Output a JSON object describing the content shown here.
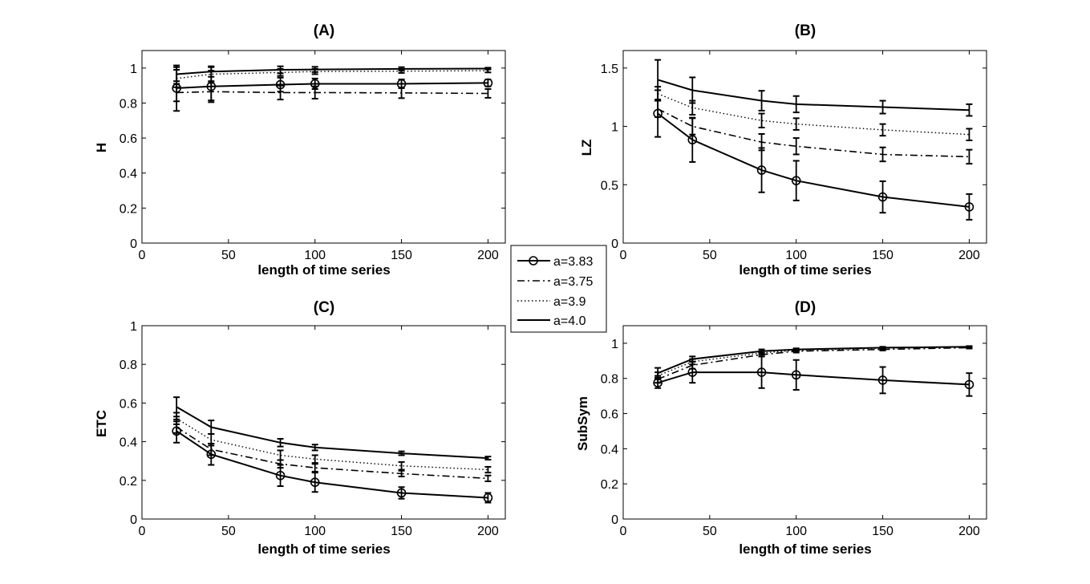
{
  "legend": {
    "entries": [
      {
        "label": "a=3.83",
        "style": "solid-circle"
      },
      {
        "label": "a=3.75",
        "style": "dashdot"
      },
      {
        "label": "a=3.9",
        "style": "dotted"
      },
      {
        "label": "a=4.0",
        "style": "solid"
      }
    ]
  },
  "chart_data": [
    {
      "type": "line",
      "title": "(A)",
      "xlabel": "length of time series",
      "ylabel": "H",
      "xlim": [
        0,
        210
      ],
      "ylim": [
        0,
        1.1
      ],
      "xticks": [
        "0",
        "50",
        "100",
        "150",
        "200"
      ],
      "yticks": [
        "0",
        "0.2",
        "0.4",
        "0.6",
        "0.8",
        "1"
      ],
      "x": [
        20,
        40,
        80,
        100,
        150,
        200
      ],
      "series": [
        {
          "name": "a=3.83",
          "values": [
            0.885,
            0.895,
            0.905,
            0.91,
            0.91,
            0.915
          ],
          "errors": [
            0.13,
            0.09,
            0.04,
            0.03,
            0.025,
            0.02
          ]
        },
        {
          "name": "a=3.75",
          "values": [
            0.86,
            0.865,
            0.86,
            0.86,
            0.858,
            0.855
          ],
          "errors": [
            0.05,
            0.05,
            0.04,
            0.035,
            0.03,
            0.025
          ]
        },
        {
          "name": "a=3.9",
          "values": [
            0.94,
            0.965,
            0.975,
            0.98,
            0.982,
            0.985
          ],
          "errors": [
            0.05,
            0.04,
            0.02,
            0.015,
            0.01,
            0.01
          ]
        },
        {
          "name": "a=4.0",
          "values": [
            0.965,
            0.98,
            0.99,
            0.992,
            0.995,
            0.997
          ],
          "errors": [
            0.04,
            0.03,
            0.02,
            0.015,
            0.01,
            0.005
          ]
        }
      ]
    },
    {
      "type": "line",
      "title": "(B)",
      "xlabel": "length of time series",
      "ylabel": "LZ",
      "xlim": [
        0,
        210
      ],
      "ylim": [
        0,
        1.65
      ],
      "xticks": [
        "0",
        "50",
        "100",
        "150",
        "200"
      ],
      "yticks": [
        "0",
        "0.5",
        "1",
        "1.5"
      ],
      "x": [
        20,
        40,
        80,
        100,
        150,
        200
      ],
      "series": [
        {
          "name": "a=3.83",
          "values": [
            1.11,
            0.885,
            0.625,
            0.535,
            0.395,
            0.31
          ],
          "errors": [
            0.2,
            0.19,
            0.19,
            0.17,
            0.135,
            0.11
          ]
        },
        {
          "name": "a=3.75",
          "values": [
            1.15,
            1.0,
            0.865,
            0.83,
            0.76,
            0.74
          ],
          "errors": [
            0.07,
            0.07,
            0.07,
            0.07,
            0.06,
            0.06
          ]
        },
        {
          "name": "a=3.9",
          "values": [
            1.28,
            1.16,
            1.05,
            1.02,
            0.97,
            0.93
          ],
          "errors": [
            0.06,
            0.06,
            0.06,
            0.05,
            0.05,
            0.05
          ]
        },
        {
          "name": "a=4.0",
          "values": [
            1.4,
            1.31,
            1.22,
            1.19,
            1.165,
            1.14
          ],
          "errors": [
            0.17,
            0.11,
            0.085,
            0.07,
            0.055,
            0.05
          ]
        }
      ]
    },
    {
      "type": "line",
      "title": "(C)",
      "xlabel": "length of time series",
      "ylabel": "ETC",
      "xlim": [
        0,
        210
      ],
      "ylim": [
        0,
        1
      ],
      "xticks": [
        "0",
        "50",
        "100",
        "150",
        "200"
      ],
      "yticks": [
        "0",
        "0.2",
        "0.4",
        "0.6",
        "0.8",
        "1"
      ],
      "x": [
        20,
        40,
        80,
        100,
        150,
        200
      ],
      "series": [
        {
          "name": "a=3.83",
          "values": [
            0.455,
            0.335,
            0.225,
            0.19,
            0.135,
            0.11
          ],
          "errors": [
            0.06,
            0.055,
            0.055,
            0.05,
            0.03,
            0.025
          ]
        },
        {
          "name": "a=3.75",
          "values": [
            0.475,
            0.36,
            0.285,
            0.265,
            0.235,
            0.21
          ],
          "errors": [
            0.03,
            0.03,
            0.02,
            0.02,
            0.015,
            0.015
          ]
        },
        {
          "name": "a=3.9",
          "values": [
            0.52,
            0.41,
            0.33,
            0.31,
            0.275,
            0.255
          ],
          "errors": [
            0.03,
            0.03,
            0.025,
            0.02,
            0.02,
            0.015
          ]
        },
        {
          "name": "a=4.0",
          "values": [
            0.58,
            0.475,
            0.395,
            0.37,
            0.34,
            0.315
          ],
          "errors": [
            0.05,
            0.035,
            0.02,
            0.015,
            0.01,
            0.008
          ]
        }
      ]
    },
    {
      "type": "line",
      "title": "(D)",
      "xlabel": "length of time series",
      "ylabel": "SubSym",
      "xlim": [
        0,
        210
      ],
      "ylim": [
        0,
        1.1
      ],
      "xticks": [
        "0",
        "50",
        "100",
        "150",
        "200"
      ],
      "yticks": [
        "0",
        "0.2",
        "0.4",
        "0.6",
        "0.8",
        "1"
      ],
      "x": [
        20,
        40,
        80,
        100,
        150,
        200
      ],
      "series": [
        {
          "name": "a=3.83",
          "values": [
            0.775,
            0.835,
            0.835,
            0.82,
            0.79,
            0.765
          ],
          "errors": [
            0.03,
            0.06,
            0.09,
            0.085,
            0.075,
            0.065
          ]
        },
        {
          "name": "a=3.75",
          "values": [
            0.795,
            0.875,
            0.935,
            0.955,
            0.965,
            0.975
          ],
          "errors": [
            0.02,
            0.02,
            0.01,
            0.008,
            0.006,
            0.005
          ]
        },
        {
          "name": "a=3.9",
          "values": [
            0.815,
            0.895,
            0.945,
            0.96,
            0.972,
            0.978
          ],
          "errors": [
            0.02,
            0.015,
            0.01,
            0.006,
            0.005,
            0.004
          ]
        },
        {
          "name": "a=4.0",
          "values": [
            0.83,
            0.91,
            0.955,
            0.965,
            0.975,
            0.98
          ],
          "errors": [
            0.03,
            0.015,
            0.01,
            0.006,
            0.005,
            0.004
          ]
        }
      ]
    }
  ]
}
